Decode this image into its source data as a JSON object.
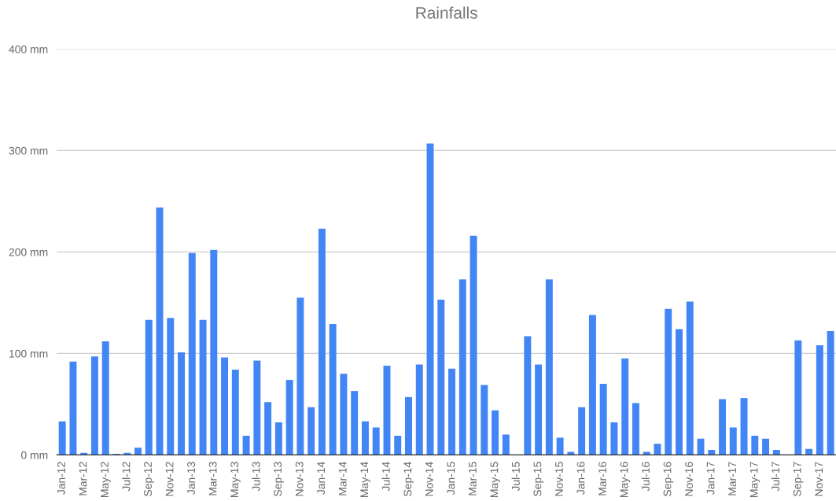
{
  "chart_data": {
    "type": "bar",
    "title": "Rainfalls",
    "categories": [
      "Jan-12",
      null,
      "Mar-12",
      null,
      "May-12",
      null,
      "Jul-12",
      null,
      "Sep-12",
      null,
      "Nov-12",
      null,
      "Jan-13",
      null,
      "Mar-13",
      null,
      "May-13",
      null,
      "Jul-13",
      null,
      "Sep-13",
      null,
      "Nov-13",
      null,
      "Jan-14",
      null,
      "Mar-14",
      null,
      "May-14",
      null,
      "Jul-14",
      null,
      "Sep-14",
      null,
      "Nov-14",
      null,
      "Jan-15",
      null,
      "Mar-15",
      null,
      "May-15",
      null,
      "Jul-15",
      null,
      "Sep-15",
      null,
      "Nov-15",
      null,
      "Jan-16",
      null,
      "Mar-16",
      null,
      "May-16",
      null,
      "Jul-16",
      null,
      "Sep-16",
      null,
      "Nov-16",
      null,
      "Jan-17",
      null,
      "Mar-17",
      null,
      "May-17",
      null,
      "Jul-17",
      null,
      "Sep-17",
      null,
      "Nov-17",
      null
    ],
    "values": [
      33,
      92,
      2,
      97,
      112,
      1,
      2,
      7,
      133,
      244,
      135,
      101,
      199,
      133,
      202,
      96,
      84,
      19,
      93,
      52,
      32,
      74,
      155,
      47,
      223,
      129,
      80,
      63,
      33,
      27,
      88,
      19,
      57,
      89,
      307,
      153,
      85,
      173,
      216,
      69,
      44,
      20,
      0,
      117,
      89,
      173,
      17,
      3,
      47,
      138,
      70,
      32,
      95,
      51,
      3,
      11,
      144,
      124,
      151,
      16,
      5,
      55,
      27,
      56,
      19,
      16,
      5,
      0,
      113,
      6,
      108,
      122
    ],
    "color": "#4285f4",
    "ylim": [
      0,
      400
    ],
    "yticks": [
      {
        "value": 0,
        "label": "0 mm"
      },
      {
        "value": 100,
        "label": "100 mm"
      },
      {
        "value": 200,
        "label": "200 mm"
      },
      {
        "value": 300,
        "label": "300 mm"
      },
      {
        "value": 400,
        "label": "400 mm"
      }
    ],
    "grid": "y"
  }
}
